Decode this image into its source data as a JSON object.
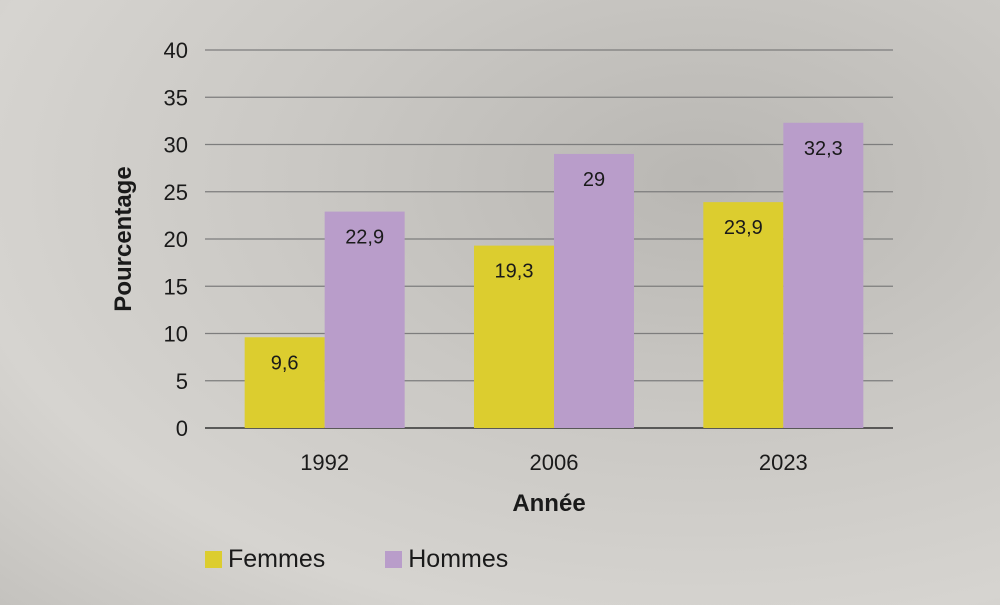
{
  "chart_data": {
    "type": "bar",
    "title": "",
    "xlabel": "Année",
    "ylabel": "Pourcentage",
    "ylim": [
      0,
      40
    ],
    "yticks": [
      0,
      5,
      10,
      15,
      20,
      25,
      30,
      35,
      40
    ],
    "grid": true,
    "legend_placement": "bottom-left",
    "categories": [
      "1992",
      "2006",
      "2023"
    ],
    "series": [
      {
        "name": "Femmes",
        "color": "#dccd2f",
        "values": [
          9.6,
          19.3,
          23.9
        ],
        "labels": [
          "9,6",
          "19,3",
          "23,9"
        ]
      },
      {
        "name": "Hommes",
        "color": "#b99dca",
        "values": [
          22.9,
          29,
          32.3
        ],
        "labels": [
          "22,9",
          "29",
          "32,3"
        ]
      }
    ]
  }
}
